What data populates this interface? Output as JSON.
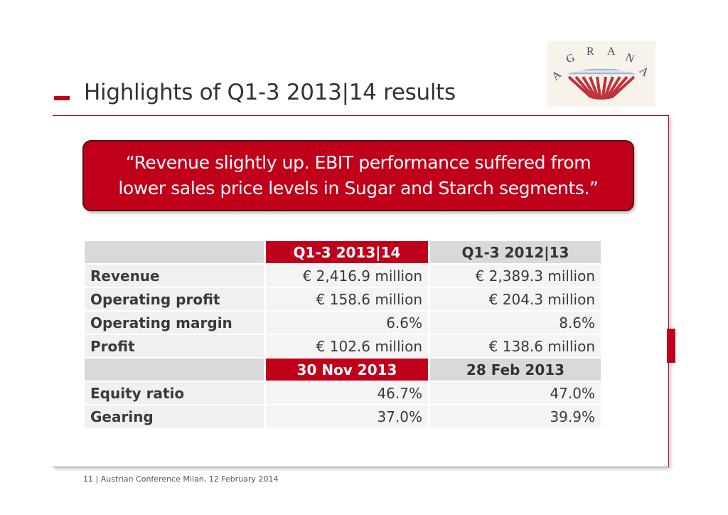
{
  "slide": {
    "title": "Highlights of Q1-3 2013|14 results",
    "quote_line1": "“Revenue slightly up. EBIT performance suffered from",
    "quote_line2": "lower sales price levels in Sugar and Starch segments.”",
    "logo_text": [
      "A",
      "G",
      "R",
      "A",
      "N",
      "A"
    ]
  },
  "table1": {
    "headers": [
      "",
      "Q1-3 2013|14",
      "Q1-3 2012|13"
    ],
    "rows": [
      {
        "label": "Revenue",
        "current": "€ 2,416.9 million",
        "previous": "€ 2,389.3 million"
      },
      {
        "label": "Operating profit",
        "current": "€ 158.6 million",
        "previous": "€ 204.3 million"
      },
      {
        "label": "Operating margin",
        "current": "6.6%",
        "previous": "8.6%"
      },
      {
        "label": "Profit",
        "current": "€ 102.6 million",
        "previous": "€ 138.6 million"
      }
    ]
  },
  "table2": {
    "headers": [
      "",
      "30 Nov 2013",
      "28 Feb 2013"
    ],
    "rows": [
      {
        "label": "Equity ratio",
        "current": "46.7%",
        "previous": "47.0%"
      },
      {
        "label": "Gearing",
        "current": "37.0%",
        "previous": "39.9%"
      }
    ]
  },
  "footer": {
    "page_number": "11",
    "separator": "|",
    "text": "Austrian Conference Milan, 12 February 2014"
  },
  "colors": {
    "accent_red": "#c0001b",
    "header_gray": "#d9d9d9",
    "row_gray": "#f0f0f0"
  }
}
